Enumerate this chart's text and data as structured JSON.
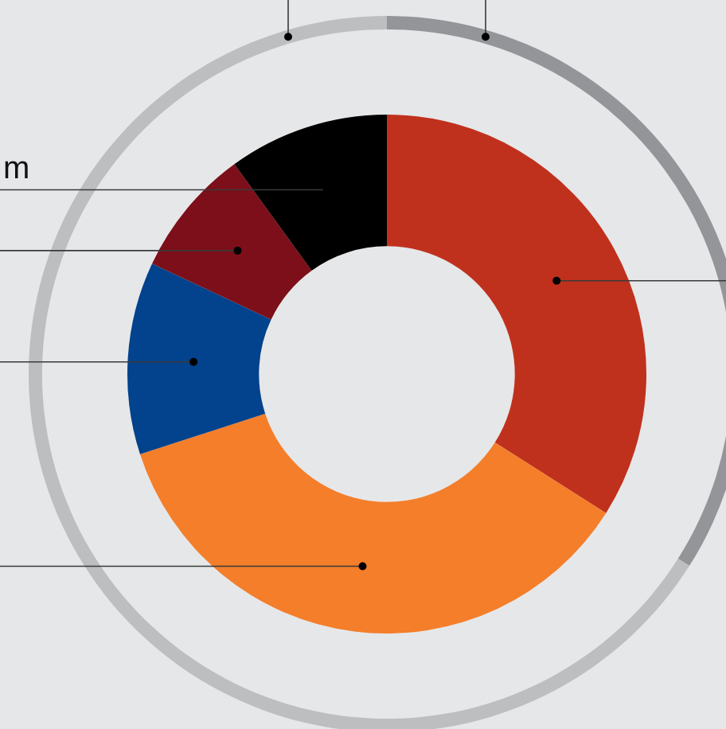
{
  "chart_data": [
    {
      "type": "donut",
      "categories": [
        null,
        null
      ],
      "values": [
        34,
        66
      ],
      "colors": [
        "#939598",
        "#bcbec0"
      ]
    },
    {
      "type": "donut",
      "categories": [
        null,
        null,
        null,
        null,
        "m"
      ],
      "values": [
        34,
        36,
        12,
        8,
        10
      ],
      "colors": [
        "#c0311d",
        "#f47e2a",
        "#03428c",
        "#7c0f19",
        "#000000"
      ]
    }
  ]
}
